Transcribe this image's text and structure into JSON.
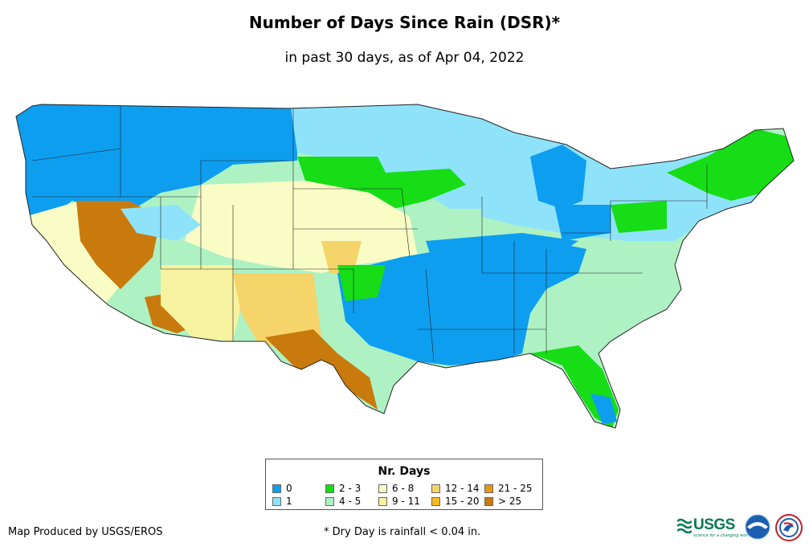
{
  "title": "Number of Days Since Rain (DSR)*",
  "subtitle": "in past 30 days, as of Apr 04, 2022",
  "legend": {
    "title": "Nr. Days",
    "items": [
      {
        "label": "0",
        "color": "#0d9ef0"
      },
      {
        "label": "1",
        "color": "#8ee3fa"
      },
      {
        "label": "2 - 3",
        "color": "#16dd16"
      },
      {
        "label": "4 - 5",
        "color": "#aef2c4"
      },
      {
        "label": "6 - 8",
        "color": "#fafcc6"
      },
      {
        "label": "9 - 11",
        "color": "#f7f2a0"
      },
      {
        "label": "12 - 14",
        "color": "#f5d46a"
      },
      {
        "label": "15 - 20",
        "color": "#f5ba1e"
      },
      {
        "label": "21 - 25",
        "color": "#e69a12"
      },
      {
        "label": "> 25",
        "color": "#c97a0c"
      }
    ]
  },
  "credit": "Map Produced by USGS/EROS",
  "footnote": "* Dry Day is rainfall < 0.04 in.",
  "logos": {
    "usgs": "USGS",
    "usgs_tagline": "science for a changing world",
    "noaa_icon": "noaa-icon",
    "nws_icon": "nws-icon"
  }
}
